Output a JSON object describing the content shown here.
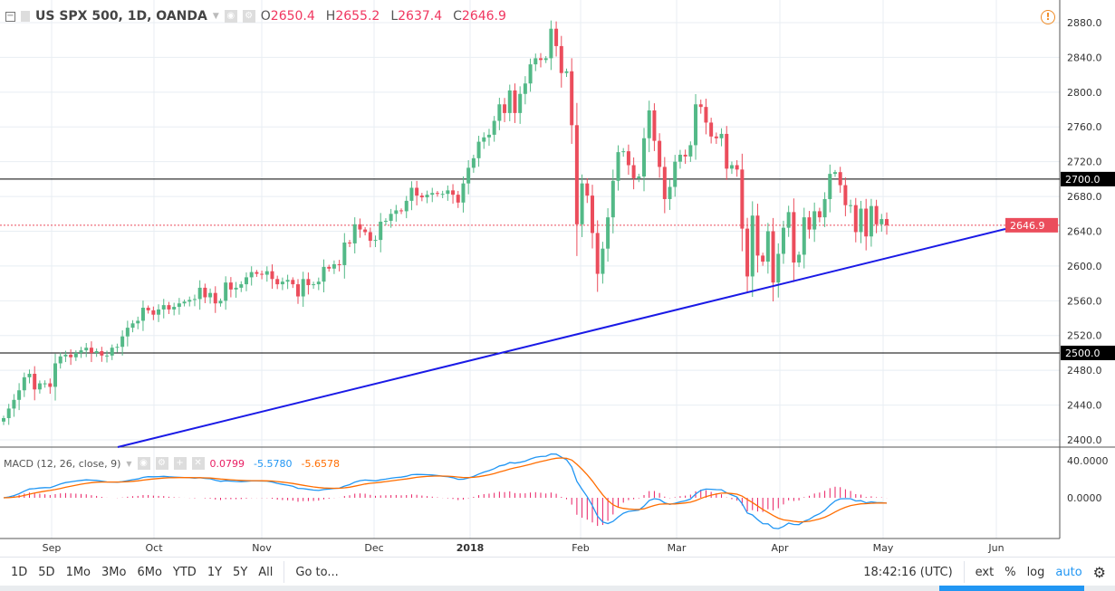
{
  "header": {
    "symbol": "US SPX 500, 1D, OANDA",
    "open_label": "O",
    "open": "2650.4",
    "high_label": "H",
    "high": "2655.2",
    "low_label": "L",
    "low": "2637.4",
    "close_label": "C",
    "close": "2646.9"
  },
  "macd_header": {
    "label": "MACD (12, 26, close, 9)",
    "hist": "0.0799",
    "macd": "-5.5780",
    "signal": "-5.6578"
  },
  "toolbar": {
    "ranges": [
      "1D",
      "5D",
      "1Mo",
      "3Mo",
      "6Mo",
      "YTD",
      "1Y",
      "5Y",
      "All"
    ],
    "goto": "Go to...",
    "time": "18:42:16 (UTC)",
    "ext": "ext",
    "percent": "%",
    "log": "log",
    "auto": "auto"
  },
  "colors": {
    "up": "#53b987",
    "down": "#eb4d5c",
    "trend": "#1a1ae6",
    "macd": "#2196f3",
    "signal": "#ff6d00",
    "hist": "#e91e63"
  },
  "chart_data": {
    "type": "candlestick",
    "price_ticks": [
      2880,
      2840,
      2800,
      2760,
      2720,
      2680,
      2640,
      2600,
      2560,
      2520,
      2480,
      2440,
      2400
    ],
    "price_labels": [
      "2880.0",
      "2840.0",
      "2800.0",
      "2760.0",
      "2720.0",
      "2680.0",
      "2640.0",
      "2600.0",
      "2560.0",
      "2520.0",
      "2480.0",
      "2440.0",
      "2400.0"
    ],
    "ylim": [
      2390,
      2895
    ],
    "macd_ticks": [
      "40.0000",
      "0.0000"
    ],
    "time_labels": [
      "Sep",
      "Oct",
      "Nov",
      "Dec",
      "2018",
      "Feb",
      "Mar",
      "Apr",
      "May",
      "Jun"
    ],
    "horizontal_lines": [
      {
        "price": 2700,
        "label": "2700.0"
      },
      {
        "price": 2500,
        "label": "2500.0"
      }
    ],
    "last_price": {
      "price": 2646.9,
      "label": "2646.9"
    },
    "closes": [
      2425,
      2436,
      2446,
      2457,
      2472,
      2476,
      2458,
      2465,
      2465,
      2461,
      2488,
      2496,
      2498,
      2495,
      2500,
      2503,
      2506,
      2500,
      2502,
      2497,
      2497,
      2506,
      2507,
      2519,
      2529,
      2534,
      2537,
      2552,
      2549,
      2544,
      2550,
      2555,
      2550,
      2553,
      2557,
      2559,
      2561,
      2562,
      2575,
      2564,
      2569,
      2557,
      2560,
      2581,
      2573,
      2575,
      2579,
      2587,
      2593,
      2591,
      2590,
      2594,
      2585,
      2579,
      2582,
      2584,
      2579,
      2565,
      2585,
      2578,
      2579,
      2582,
      2599,
      2597,
      2602,
      2601,
      2627,
      2626,
      2648,
      2642,
      2639,
      2629,
      2630,
      2651,
      2652,
      2660,
      2664,
      2663,
      2675,
      2690,
      2681,
      2679,
      2682,
      2684,
      2683,
      2683,
      2687,
      2682,
      2673,
      2695,
      2713,
      2724,
      2743,
      2748,
      2751,
      2767,
      2786,
      2776,
      2802,
      2776,
      2798,
      2810,
      2832,
      2839,
      2837,
      2839,
      2873,
      2853,
      2822,
      2824,
      2762,
      2648,
      2695,
      2681,
      2638,
      2591,
      2620,
      2656,
      2698,
      2731,
      2732,
      2716,
      2701,
      2703,
      2747,
      2779,
      2744,
      2714,
      2677,
      2691,
      2720,
      2728,
      2726,
      2739,
      2786,
      2783,
      2765,
      2749,
      2747,
      2752,
      2712,
      2716,
      2711,
      2643,
      2588,
      2658,
      2612,
      2605,
      2640,
      2581,
      2614,
      2644,
      2662,
      2604,
      2613,
      2656,
      2642,
      2663,
      2656,
      2677,
      2706,
      2708,
      2693,
      2670,
      2670,
      2639,
      2666,
      2634,
      2669,
      2648,
      2654,
      2646.9
    ]
  }
}
